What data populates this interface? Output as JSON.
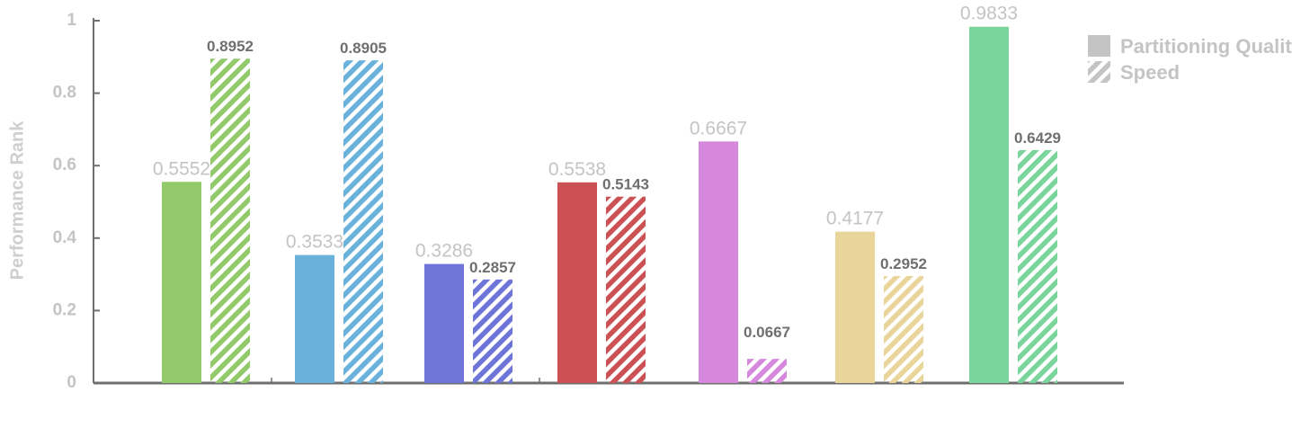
{
  "chart_data": {
    "type": "bar",
    "title": "",
    "xlabel": "",
    "ylabel": "Performance Rank",
    "ylim": [
      0,
      1
    ],
    "yticks": [
      "0",
      "0.2",
      "0.4",
      "0.6",
      "0.8",
      "1"
    ],
    "categories": [
      "",
      "",
      "",
      "",
      "",
      "",
      ""
    ],
    "colors": [
      "#92c96a",
      "#6ab2dc",
      "#6e74d8",
      "#cc5154",
      "#d588dc",
      "#e9d59a",
      "#79d59b"
    ],
    "grid": false,
    "legend_position": "top-right",
    "series": [
      {
        "name": "Partitioning Quality",
        "style": "solid",
        "values": [
          0.5552,
          0.3533,
          0.3286,
          0.5538,
          0.6667,
          0.4177,
          0.9833
        ],
        "labels": [
          "0.5552",
          "0.3533",
          "0.3286",
          "0.5538",
          "0.6667",
          "0.4177",
          "0.9833"
        ]
      },
      {
        "name": "Speed",
        "style": "hatched",
        "values": [
          0.8952,
          0.8905,
          0.2857,
          0.5143,
          0.0667,
          0.2952,
          0.6429
        ],
        "labels": [
          "0.8952",
          "0.8905",
          "0.2857",
          "0.5143",
          "0.0667",
          "0.2952",
          "0.6429"
        ]
      }
    ]
  }
}
